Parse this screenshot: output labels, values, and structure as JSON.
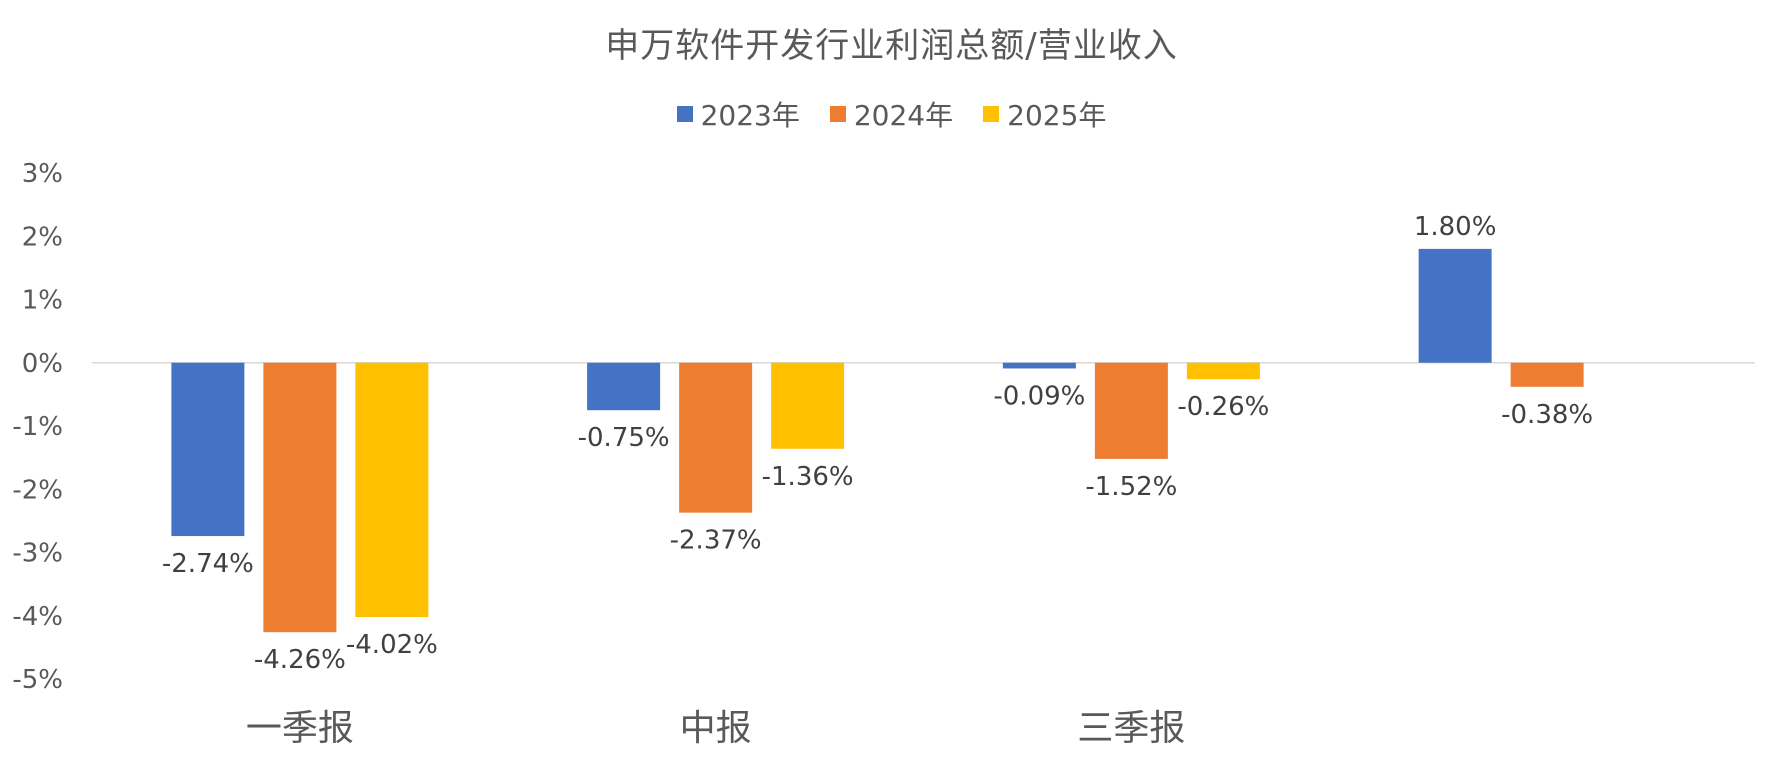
{
  "chart_data": {
    "type": "bar",
    "title": "申万软件开发行业利润总额/营业收入",
    "xlabel": "",
    "ylabel": "",
    "categories": [
      "一季报",
      "中报",
      "三季报",
      ""
    ],
    "series": [
      {
        "name": "2023年",
        "color": "#4472C4",
        "values": [
          -2.74,
          -0.75,
          -0.09,
          1.8
        ]
      },
      {
        "name": "2024年",
        "color": "#ED7D31",
        "values": [
          -4.26,
          -2.37,
          -1.52,
          -0.38
        ]
      },
      {
        "name": "2025年",
        "color": "#FFC000",
        "values": [
          -4.02,
          -1.36,
          -0.26,
          null
        ]
      }
    ],
    "ylim": [
      -5,
      3
    ],
    "yticks": [
      3,
      2,
      1,
      0,
      -1,
      -2,
      -3,
      -4,
      -5
    ],
    "ytick_labels": [
      "3%",
      "2%",
      "1%",
      "0%",
      "-1%",
      "-2%",
      "-3%",
      "-4%",
      "-5%"
    ],
    "data_labels": [
      [
        "-2.74%",
        "-0.75%",
        "-0.09%",
        "1.80%"
      ],
      [
        "-4.26%",
        "-2.37%",
        "-1.52%",
        "-0.38%"
      ],
      [
        "-4.02%",
        "-1.36%",
        "-0.26%",
        ""
      ]
    ],
    "grid": false,
    "legend_position": "top-center"
  }
}
